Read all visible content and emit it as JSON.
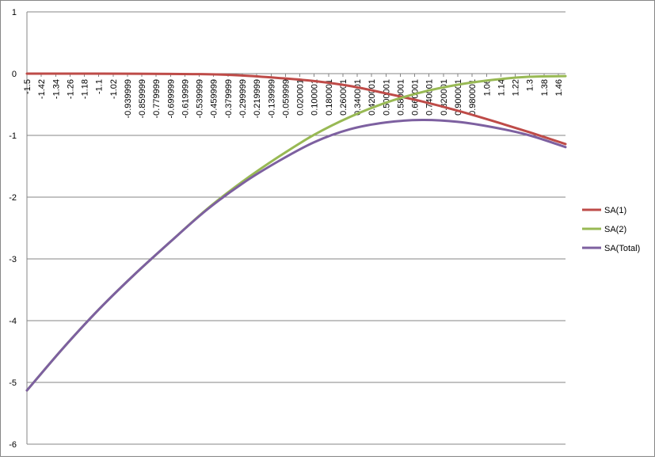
{
  "chart_data": {
    "type": "line",
    "title": "",
    "xlabel": "",
    "ylabel": "",
    "ylim": [
      -6,
      1
    ],
    "y_ticks": [
      "1",
      "0",
      "-1",
      "-2",
      "-3",
      "-4",
      "-5",
      "-6"
    ],
    "y_tick_values": [
      1,
      0,
      -1,
      -2,
      -3,
      -4,
      -5,
      -6
    ],
    "grid": "horizontal",
    "legend_position": "right",
    "x_range": [
      -1.5,
      1.5
    ],
    "x_tick_labels": [
      "-1.5",
      "-1.42",
      "-1.34",
      "-1.26",
      "-1.18",
      "-1.1",
      "-1.02",
      "-0.939999",
      "-0.859999",
      "-0.779999",
      "-0.699999",
      "-0.619999",
      "-0.539999",
      "-0.459999",
      "-0.379999",
      "-0.299999",
      "-0.219999",
      "-0.139999",
      "-0.059999",
      "0.020001",
      "0.100001",
      "0.180001",
      "0.260001",
      "0.340001",
      "0.420001",
      "0.500001",
      "0.580001",
      "0.660001",
      "0.740001",
      "0.820001",
      "0.900001",
      "0.980001",
      "1.06",
      "1.14",
      "1.22",
      "1.3",
      "1.38",
      "1.46"
    ],
    "x_tick_values": [
      -1.5,
      -1.42,
      -1.34,
      -1.26,
      -1.18,
      -1.1,
      -1.02,
      -0.939999,
      -0.859999,
      -0.779999,
      -0.699999,
      -0.619999,
      -0.539999,
      -0.459999,
      -0.379999,
      -0.299999,
      -0.219999,
      -0.139999,
      -0.059999,
      0.020001,
      0.100001,
      0.180001,
      0.260001,
      0.340001,
      0.420001,
      0.500001,
      0.580001,
      0.660001,
      0.740001,
      0.820001,
      0.900001,
      0.980001,
      1.06,
      1.14,
      1.22,
      1.3,
      1.38,
      1.46
    ],
    "x": [
      -1.5,
      -1.3,
      -1.1,
      -0.9,
      -0.7,
      -0.5,
      -0.3,
      -0.1,
      0.1,
      0.3,
      0.5,
      0.7,
      0.9,
      1.1,
      1.3,
      1.5
    ],
    "series": [
      {
        "name": "SA(1)",
        "color": "#be4b48",
        "values": [
          0,
          0,
          0,
          -0.002,
          -0.005,
          -0.01,
          -0.03,
          -0.07,
          -0.12,
          -0.2,
          -0.32,
          -0.45,
          -0.6,
          -0.77,
          -0.95,
          -1.14
        ]
      },
      {
        "name": "SA(2)",
        "color": "#98b954",
        "values": [
          -5.13,
          -4.45,
          -3.82,
          -3.25,
          -2.72,
          -2.2,
          -1.75,
          -1.35,
          -0.99,
          -0.7,
          -0.47,
          -0.3,
          -0.18,
          -0.1,
          -0.05,
          -0.04
        ]
      },
      {
        "name": "SA(Total)",
        "color": "#7d60a0",
        "values": [
          -5.13,
          -4.45,
          -3.82,
          -3.25,
          -2.72,
          -2.21,
          -1.78,
          -1.42,
          -1.11,
          -0.9,
          -0.79,
          -0.75,
          -0.78,
          -0.87,
          -1.0,
          -1.19
        ]
      }
    ]
  }
}
